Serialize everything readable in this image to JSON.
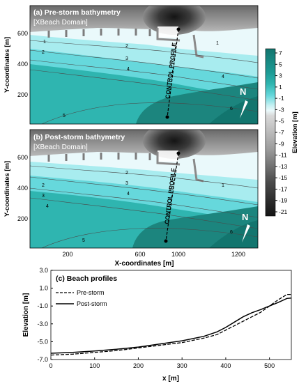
{
  "panel_a": {
    "title": "(a) Pre-storm bathymetry",
    "subtitle": "[XBeach Domain]",
    "control_label": "CONTROL PROFILE",
    "north_label": "N",
    "contour_labels": [
      "1",
      "2",
      "3",
      "4",
      "5",
      "1",
      "1",
      "2",
      "3",
      "4",
      "5",
      "6"
    ]
  },
  "panel_b": {
    "title": "(b) Post-storm bathymetry",
    "subtitle": "[XBeach Domain]",
    "control_label": "CONTROL PROFILE",
    "north_label": "N",
    "contour_labels": [
      "2",
      "3",
      "4",
      "5",
      "1",
      "2",
      "3",
      "4",
      "5",
      "6"
    ]
  },
  "map_axes": {
    "ylabel": "Y-coordinates [m]",
    "xlabel": "X-coordinates [m]",
    "yticks": [
      "200",
      "400",
      "600"
    ],
    "xticks": [
      "200",
      "600",
      "1000",
      "1200"
    ]
  },
  "colorbar": {
    "label": "Elevation [m]",
    "ticks": [
      "7",
      "5",
      "3",
      "1",
      "-1",
      "-3",
      "-5",
      "-7",
      "-9",
      "-11",
      "-13",
      "-15",
      "-17",
      "-19",
      "-21"
    ],
    "colors": {
      "deep": "#1c857e",
      "mid": "#2fb5b0",
      "shallow": "#66d8dc",
      "surf": "#a8ecef",
      "near_zero": "#eaf9fb",
      "land_light": "#d9d9d9",
      "land_mid": "#9c9c9c",
      "land_dark": "#4a4a4a",
      "land_black": "#141414"
    }
  },
  "chart_data": {
    "type": "line",
    "title": "(c) Beach profiles",
    "xlabel": "x [m]",
    "ylabel": "Elevation [m]",
    "xlim": [
      0,
      550
    ],
    "ylim": [
      -7.0,
      3.0
    ],
    "xticks": [
      "0",
      "100",
      "200",
      "300",
      "400",
      "500"
    ],
    "yticks": [
      "3.0",
      "1.0",
      "-1.0",
      "-3.0",
      "-5.0",
      "-7.0"
    ],
    "legend_position": "upper-left",
    "series": [
      {
        "name": "Pre-storm",
        "style": "dashed",
        "x": [
          0,
          50,
          100,
          150,
          200,
          250,
          300,
          350,
          380,
          400,
          420,
          440,
          460,
          480,
          500,
          520,
          540,
          550
        ],
        "y": [
          -6.5,
          -6.4,
          -6.2,
          -6.0,
          -5.7,
          -5.4,
          -5.1,
          -4.6,
          -4.2,
          -3.7,
          -3.2,
          -2.7,
          -2.2,
          -1.7,
          -1.0,
          -0.3,
          0.3,
          0.3
        ]
      },
      {
        "name": "Post-storm",
        "style": "solid",
        "x": [
          0,
          50,
          100,
          150,
          200,
          250,
          300,
          350,
          380,
          400,
          420,
          440,
          460,
          480,
          500,
          520,
          540,
          550
        ],
        "y": [
          -6.3,
          -6.2,
          -6.05,
          -5.85,
          -5.6,
          -5.25,
          -4.9,
          -4.4,
          -3.9,
          -3.4,
          -2.8,
          -2.2,
          -1.75,
          -1.4,
          -1.0,
          -0.6,
          -0.15,
          -0.1
        ]
      }
    ]
  }
}
